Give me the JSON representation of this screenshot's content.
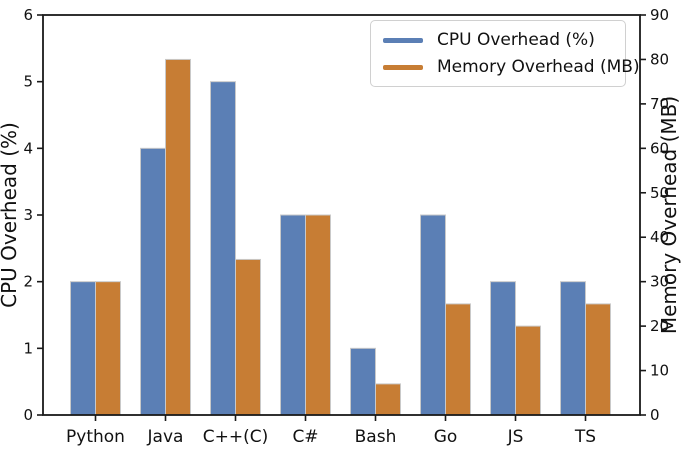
{
  "chart_data": {
    "type": "bar",
    "title": "",
    "categories": [
      "Python",
      "Java",
      "C++(C)",
      "C#",
      "Bash",
      "Go",
      "JS",
      "TS"
    ],
    "series": [
      {
        "name": "CPU Overhead (%)",
        "axis": "left",
        "color": "#5b7fb5",
        "values": [
          2,
          4,
          5,
          3,
          1,
          3,
          2,
          2
        ]
      },
      {
        "name": "Memory Overhead (MB)",
        "axis": "right",
        "color": "#c77d34",
        "values": [
          30,
          80,
          35,
          45,
          7,
          25,
          20,
          25
        ]
      }
    ],
    "left_axis": {
      "label": "CPU Overhead (%)",
      "min": 0,
      "max": 6,
      "ticks": [
        0,
        1,
        2,
        3,
        4,
        5,
        6
      ]
    },
    "right_axis": {
      "label": "Memory Overhead (MB)",
      "min": 0,
      "max": 90,
      "ticks": [
        0,
        10,
        20,
        30,
        40,
        50,
        60,
        70,
        80,
        90
      ]
    },
    "legend": {
      "position": "upper-right"
    },
    "grid": false,
    "bar_edge_color": "#c9c9c9",
    "axis_color": "#1a1a1a",
    "background": "#ffffff"
  }
}
